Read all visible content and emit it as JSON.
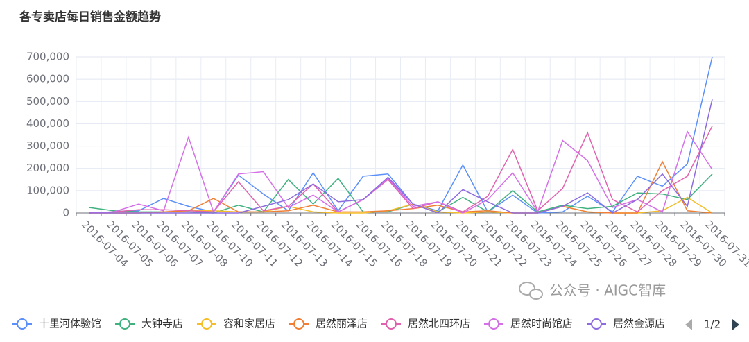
{
  "chart_data": {
    "type": "line",
    "title": "各专卖店每日销售金额趋势",
    "categories": [
      "2016-07-04",
      "2016-07-05",
      "2016-07-06",
      "2016-07-07",
      "2016-07-08",
      "2016-07-10",
      "2016-07-11",
      "2016-07-12",
      "2016-07-13",
      "2016-07-14",
      "2016-07-15",
      "2016-07-16",
      "2016-07-18",
      "2016-07-19",
      "2016-07-20",
      "2016-07-21",
      "2016-07-22",
      "2016-07-23",
      "2016-07-24",
      "2016-07-25",
      "2016-07-26",
      "2016-07-27",
      "2016-07-28",
      "2016-07-29",
      "2016-07-30",
      "2016-07-31"
    ],
    "ylim": [
      0,
      700000
    ],
    "yticks": [
      0,
      {
        "value": 100000,
        "label": "100,000"
      },
      {
        "value": 200000,
        "label": "200,000"
      },
      {
        "value": 300000,
        "label": "300,000"
      },
      {
        "value": 400000,
        "label": "400,000"
      },
      {
        "value": 500000,
        "label": "500,000"
      },
      {
        "value": 600000,
        "label": "600,000"
      },
      {
        "value": 700000,
        "label": "700,000"
      }
    ],
    "grid": true,
    "legend_page": "1/2",
    "series": [
      {
        "name": "十里河体验馆",
        "color": "#5b8ff9",
        "values": [
          0,
          5000,
          10000,
          65000,
          30000,
          5000,
          170000,
          85000,
          10000,
          180000,
          10000,
          165000,
          175000,
          40000,
          10000,
          215000,
          5000,
          80000,
          0,
          5000,
          75000,
          5000,
          165000,
          120000,
          220000,
          700000
        ]
      },
      {
        "name": "大钟寺店",
        "color": "#3fb27f",
        "values": [
          25000,
          10000,
          5000,
          5000,
          5000,
          0,
          35000,
          5000,
          150000,
          40000,
          155000,
          5000,
          5000,
          40000,
          5000,
          70000,
          5000,
          100000,
          5000,
          35000,
          20000,
          30000,
          90000,
          85000,
          60000,
          175000
        ]
      },
      {
        "name": "容和家居店",
        "color": "#f5bd27",
        "values": [
          0,
          0,
          0,
          5000,
          10000,
          10000,
          5000,
          5000,
          30000,
          5000,
          0,
          0,
          10000,
          40000,
          5000,
          0,
          5000,
          0,
          0,
          30000,
          5000,
          0,
          0,
          10000,
          70000,
          0
        ]
      },
      {
        "name": "居然丽泽店",
        "color": "#f07f35",
        "values": [
          0,
          0,
          0,
          5000,
          10000,
          65000,
          5000,
          5000,
          10000,
          35000,
          5000,
          5000,
          10000,
          20000,
          35000,
          5000,
          10000,
          0,
          0,
          30000,
          5000,
          0,
          0,
          230000,
          10000,
          0
        ]
      },
      {
        "name": "居然北四环店",
        "color": "#e062ae",
        "values": [
          0,
          5000,
          15000,
          15000,
          10000,
          5000,
          140000,
          10000,
          30000,
          130000,
          5000,
          60000,
          150000,
          20000,
          50000,
          5000,
          75000,
          285000,
          10000,
          110000,
          360000,
          60000,
          5000,
          100000,
          165000,
          390000
        ]
      },
      {
        "name": "居然时尚馆店",
        "color": "#d56fe8",
        "values": [
          0,
          5000,
          40000,
          10000,
          340000,
          5000,
          175000,
          185000,
          25000,
          80000,
          5000,
          60000,
          155000,
          30000,
          50000,
          0,
          60000,
          180000,
          5000,
          325000,
          235000,
          25000,
          60000,
          5000,
          365000,
          195000
        ]
      },
      {
        "name": "居然金源店",
        "color": "#8d6bdf",
        "values": [
          0,
          0,
          0,
          0,
          0,
          0,
          0,
          30000,
          60000,
          130000,
          50000,
          60000,
          160000,
          40000,
          0,
          105000,
          50000,
          0,
          0,
          30000,
          90000,
          0,
          60000,
          175000,
          30000,
          510000
        ]
      }
    ]
  },
  "watermark": "公众号 · AIGC智库"
}
